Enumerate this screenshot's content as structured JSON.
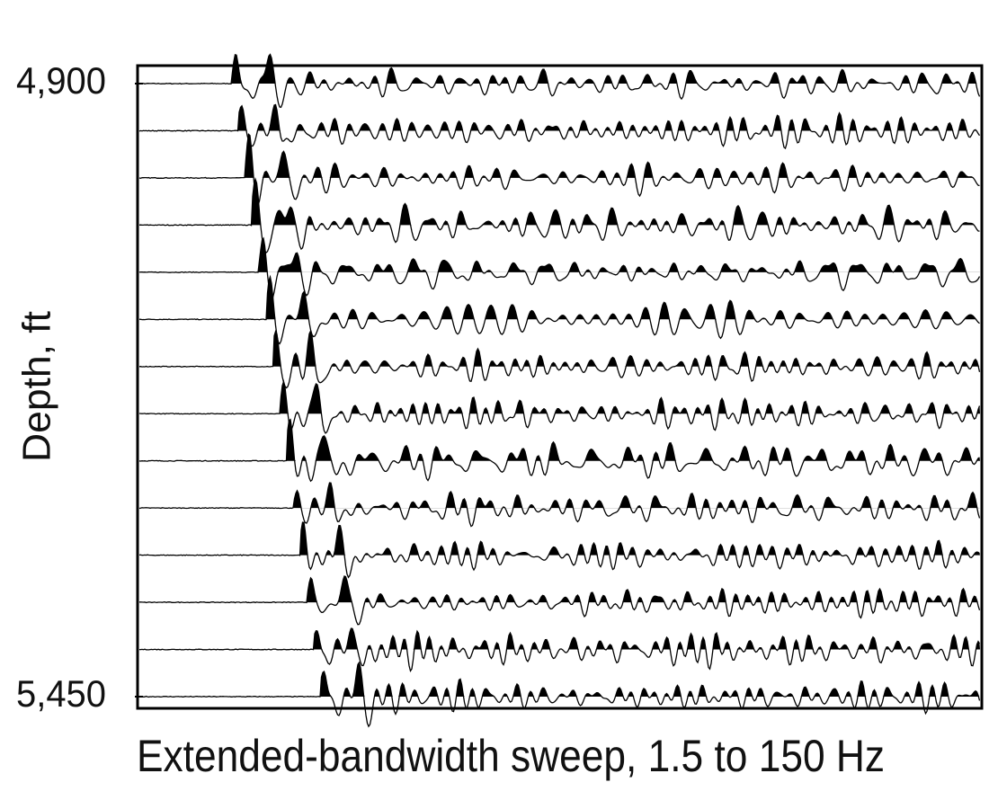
{
  "chart_data": {
    "type": "wiggle",
    "ylabel": "Depth, ft",
    "xlabel": "Extended-bandwidth sweep, 1.5 to 150 Hz",
    "ylim": [
      4900,
      5450
    ],
    "yticks": [
      {
        "value": 4900,
        "label": "4,900"
      },
      {
        "value": 5450,
        "label": "5,450"
      }
    ],
    "color": "#000000"
  }
}
